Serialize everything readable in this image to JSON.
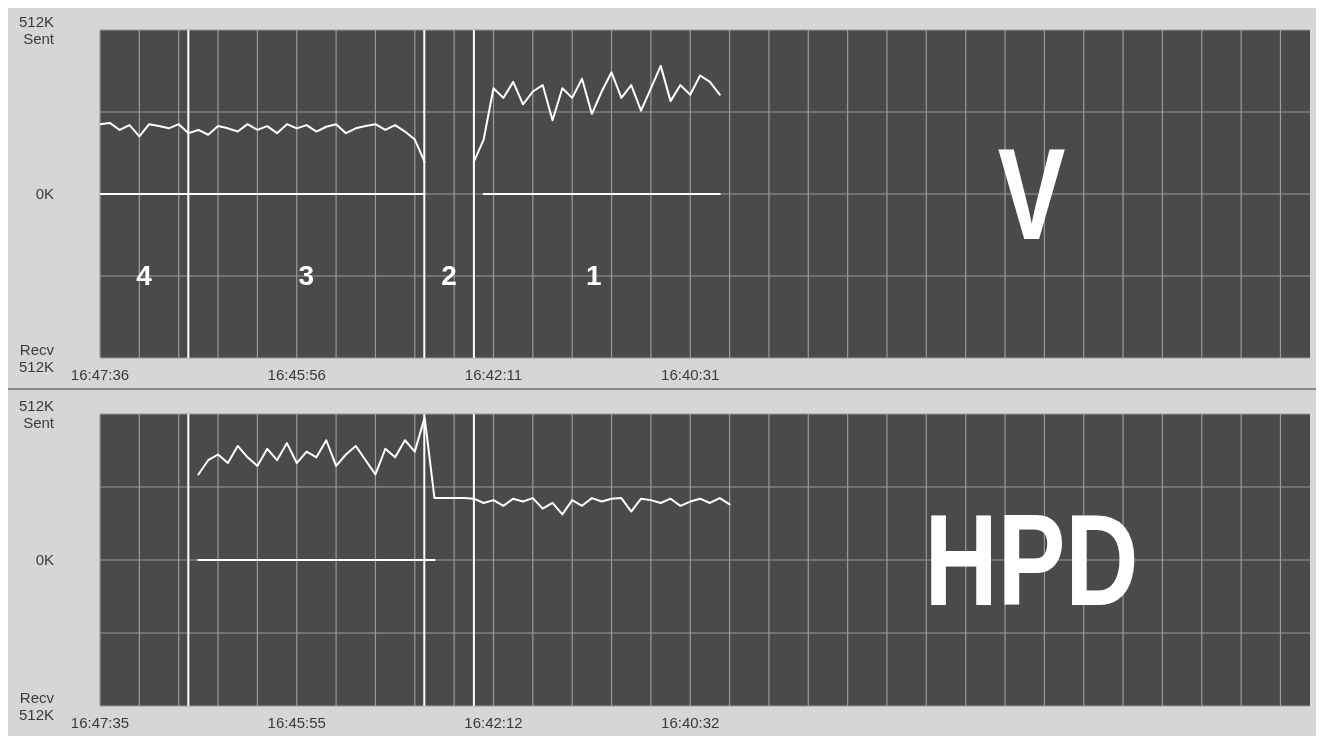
{
  "chart_data": [
    {
      "type": "line",
      "categories": [
        "16:47:36",
        null,
        null,
        null,
        null,
        null,
        null,
        null,
        null,
        null,
        null,
        null,
        null,
        null,
        null,
        null,
        null,
        null,
        null,
        null,
        "16:45:56",
        null,
        null,
        null,
        null,
        null,
        null,
        null,
        null,
        null,
        null,
        null,
        null,
        null,
        null,
        null,
        null,
        null,
        null,
        null,
        "16:42:11",
        null,
        null,
        null,
        null,
        null,
        null,
        null,
        null,
        null,
        null,
        null,
        null,
        null,
        null,
        null,
        null,
        null,
        null,
        null,
        "16:40:31",
        null,
        null,
        null,
        null,
        null,
        null,
        null,
        null,
        null,
        null,
        null,
        null,
        null,
        null,
        null,
        null,
        null,
        null,
        null,
        null,
        null,
        null,
        null,
        null,
        null,
        null,
        null,
        null,
        null,
        null,
        null,
        null,
        null,
        null,
        null,
        null,
        null,
        null,
        null,
        null,
        null,
        null,
        null,
        null,
        null,
        null,
        null,
        null,
        null,
        null,
        null,
        null,
        null,
        null,
        null,
        null,
        null,
        null,
        null,
        null,
        null,
        null,
        null
      ],
      "series": [
        {
          "color": "#ffffff",
          "values": [
            218,
            222,
            200,
            215,
            180,
            218,
            212,
            205,
            218,
            190,
            200,
            185,
            212,
            205,
            195,
            218,
            200,
            212,
            190,
            218,
            205,
            215,
            195,
            210,
            218,
            190,
            205,
            212,
            218,
            200,
            215,
            195,
            170,
            100,
            null,
            null,
            null,
            null,
            100,
            170,
            330,
            300,
            350,
            280,
            320,
            340,
            230,
            330,
            300,
            360,
            250,
            320,
            380,
            300,
            340,
            260,
            330,
            400,
            290,
            340,
            310,
            370,
            350,
            310,
            null,
            null,
            null,
            null,
            null,
            null,
            null,
            null,
            null,
            null,
            null,
            null,
            null,
            null,
            null,
            null,
            null,
            null,
            null,
            null,
            null,
            null,
            null,
            null,
            null,
            null,
            null,
            null,
            null,
            null,
            null,
            null,
            null,
            null,
            null,
            null,
            null,
            null,
            null,
            null,
            null,
            null,
            null,
            null,
            null,
            null,
            null,
            null,
            null,
            null,
            null,
            null,
            null,
            null,
            null,
            null,
            null,
            null,
            null,
            null
          ]
        },
        {
          "color": "#ffffff",
          "values": [
            0,
            0,
            0,
            0,
            0,
            0,
            0,
            0,
            0,
            0,
            0,
            0,
            0,
            0,
            0,
            0,
            0,
            0,
            0,
            0,
            0,
            0,
            0,
            0,
            0,
            0,
            0,
            0,
            0,
            0,
            0,
            0,
            0,
            0,
            null,
            null,
            null,
            null,
            null,
            0,
            0,
            0,
            0,
            0,
            0,
            0,
            0,
            0,
            0,
            0,
            0,
            0,
            0,
            0,
            0,
            0,
            0,
            0,
            0,
            0,
            0,
            0,
            0,
            0,
            null,
            null,
            null,
            null,
            null,
            null,
            null,
            null,
            null,
            null,
            null,
            null,
            null,
            null,
            null,
            null,
            null,
            null,
            null,
            null,
            null,
            null,
            null,
            null,
            null,
            null,
            null,
            null,
            null,
            null,
            null,
            null,
            null,
            null,
            null,
            null,
            null,
            null,
            null,
            null,
            null,
            null,
            null,
            null,
            null,
            null,
            null,
            null,
            null,
            null,
            null,
            null,
            null,
            null,
            null,
            null,
            null,
            null,
            null,
            null
          ]
        }
      ],
      "ylim": [
        -512,
        512
      ],
      "yticks": [
        {
          "value": 512,
          "label": "512K Sent"
        },
        {
          "value": 256,
          "label": null
        },
        {
          "value": 0,
          "label": "0K"
        },
        {
          "value": -256,
          "label": null
        },
        {
          "value": -512,
          "label": "Recv 512K"
        }
      ],
      "grid": true,
      "annotations": [
        "4",
        "3",
        "2",
        "1",
        "V"
      ]
    },
    {
      "type": "line",
      "categories": [
        "16:47:35",
        null,
        null,
        null,
        null,
        null,
        null,
        null,
        null,
        null,
        null,
        null,
        null,
        null,
        null,
        null,
        null,
        null,
        null,
        null,
        "16:45:55",
        null,
        null,
        null,
        null,
        null,
        null,
        null,
        null,
        null,
        null,
        null,
        null,
        null,
        null,
        null,
        null,
        null,
        null,
        null,
        "16:42:12",
        null,
        null,
        null,
        null,
        null,
        null,
        null,
        null,
        null,
        null,
        null,
        null,
        null,
        null,
        null,
        null,
        null,
        null,
        null,
        "16:40:32",
        null,
        null,
        null,
        null,
        null,
        null,
        null,
        null,
        null,
        null,
        null,
        null,
        null,
        null,
        null,
        null,
        null,
        null,
        null,
        null,
        null,
        null,
        null,
        null,
        null,
        null,
        null,
        null,
        null,
        null,
        null,
        null,
        null,
        null,
        null,
        null,
        null,
        null,
        null,
        null,
        null,
        null,
        null,
        null,
        null,
        null,
        null,
        null,
        null,
        null,
        null,
        null,
        null,
        null,
        null,
        null,
        null,
        null,
        null,
        null,
        null,
        null,
        null
      ],
      "series": [
        {
          "color": "#ffffff",
          "values": [
            null,
            null,
            null,
            null,
            null,
            null,
            null,
            null,
            null,
            null,
            300,
            350,
            370,
            340,
            400,
            360,
            330,
            390,
            350,
            410,
            340,
            380,
            360,
            420,
            330,
            370,
            400,
            350,
            300,
            390,
            360,
            420,
            380,
            500,
            217,
            217,
            217,
            217,
            215,
            200,
            210,
            190,
            215,
            205,
            217,
            180,
            200,
            160,
            210,
            190,
            217,
            205,
            215,
            217,
            170,
            215,
            210,
            200,
            215,
            190,
            205,
            215,
            200,
            217,
            195,
            null,
            null,
            null,
            null,
            null,
            null,
            null,
            null,
            null,
            null,
            null,
            null,
            null,
            null,
            null,
            null,
            null,
            null,
            null,
            null,
            null,
            null,
            null,
            null,
            null,
            null,
            null,
            null,
            null,
            null,
            null,
            null,
            null,
            null,
            null,
            null,
            null,
            null,
            null,
            null,
            null,
            null,
            null,
            null,
            null,
            null,
            null,
            null,
            null,
            null,
            null,
            null,
            null,
            null,
            null,
            null,
            null,
            null,
            null
          ]
        },
        {
          "color": "#ffffff",
          "values": [
            null,
            null,
            null,
            null,
            null,
            null,
            null,
            null,
            null,
            null,
            0,
            0,
            0,
            0,
            0,
            0,
            0,
            0,
            0,
            0,
            0,
            0,
            0,
            0,
            0,
            0,
            0,
            0,
            0,
            0,
            0,
            0,
            0,
            0,
            0,
            null,
            null,
            null,
            null,
            null,
            null,
            null,
            null,
            null,
            null,
            null,
            null,
            null,
            null,
            null,
            null,
            null,
            null,
            null,
            null,
            null,
            null,
            null,
            null,
            null,
            null,
            null,
            null,
            null,
            null,
            null,
            null,
            null,
            null,
            null,
            null,
            null,
            null,
            null,
            null,
            null,
            null,
            null,
            null,
            null,
            null,
            null,
            null,
            null,
            null,
            null,
            null,
            null,
            null,
            null,
            null,
            null,
            null,
            null,
            null,
            null,
            null,
            null,
            null,
            null,
            null,
            null,
            null,
            null,
            null,
            null,
            null,
            null,
            null,
            null,
            null,
            null,
            null,
            null,
            null,
            null,
            null,
            null,
            null,
            null,
            null,
            null,
            null,
            null
          ]
        }
      ],
      "ylim": [
        -512,
        512
      ],
      "yticks": [
        {
          "value": 512,
          "label": "512K Sent"
        },
        {
          "value": 256,
          "label": null
        },
        {
          "value": 0,
          "label": "0K"
        },
        {
          "value": -256,
          "label": null
        },
        {
          "value": -512,
          "label": "Recv 512K"
        }
      ],
      "grid": true,
      "annotations": [
        "HPD"
      ]
    }
  ]
}
